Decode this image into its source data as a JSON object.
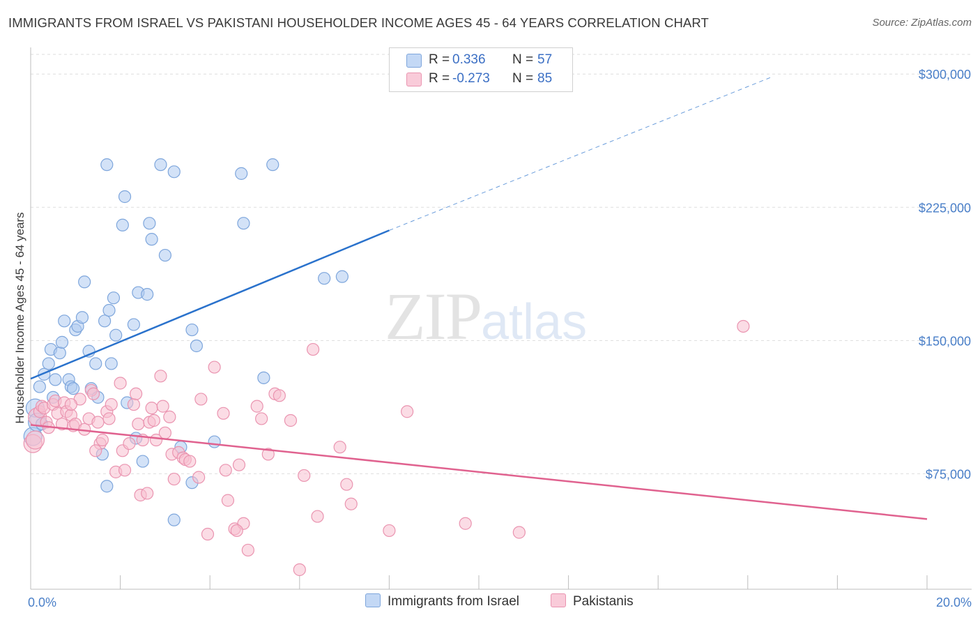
{
  "header": {
    "title": "IMMIGRANTS FROM ISRAEL VS PAKISTANI HOUSEHOLDER INCOME AGES 45 - 64 YEARS CORRELATION CHART",
    "source": "Source: ZipAtlas.com"
  },
  "watermark": {
    "zip": "ZIP",
    "atlas": "atlas"
  },
  "legend": {
    "r_label": "R =",
    "n_label": "N =",
    "israel": {
      "r": "0.336",
      "n": "57"
    },
    "pakistani": {
      "r": "-0.273",
      "n": "85"
    }
  },
  "bottom_legend": {
    "israel": "Immigrants from Israel",
    "pakistani": "Pakistanis"
  },
  "colors": {
    "israel_fill": "#aecbf0",
    "israel_stroke": "#7ea6dc",
    "israel_line": "#2a72cc",
    "pakistani_fill": "#f7bfd0",
    "pakistani_stroke": "#ea94b0",
    "pakistani_line": "#e0628f",
    "tick_label": "#4a7fc8",
    "grid": "#dddddd"
  },
  "chart_data": {
    "type": "scatter",
    "title": "IMMIGRANTS FROM ISRAEL VS PAKISTANI HOUSEHOLDER INCOME AGES 45 - 64 YEARS CORRELATION CHART",
    "xlabel": "",
    "ylabel": "Householder Income Ages 45 - 64 years",
    "xlim": [
      0,
      20
    ],
    "ylim": [
      10000,
      315000
    ],
    "x_unit": "%",
    "x_tick_labels": [
      "0.0%",
      "20.0%"
    ],
    "y_ticks": [
      75000,
      150000,
      225000,
      300000
    ],
    "y_tick_labels": [
      "$75,000",
      "$150,000",
      "$225,000",
      "$300,000"
    ],
    "grid": true,
    "legend_position": "top-center",
    "series": [
      {
        "name": "Immigrants from Israel",
        "color": "#aecbf0",
        "trend": {
          "x": [
            0,
            8.0
          ],
          "y": [
            128500,
            212000
          ],
          "dashed_to": [
            16.5,
            298000
          ]
        },
        "points": [
          [
            0.05,
            96000
          ],
          [
            0.1,
            112000
          ],
          [
            0.15,
            104000
          ],
          [
            0.2,
            124000
          ],
          [
            0.25,
            103000
          ],
          [
            0.3,
            131000
          ],
          [
            0.4,
            137000
          ],
          [
            0.45,
            145000
          ],
          [
            0.5,
            118000
          ],
          [
            0.55,
            128000
          ],
          [
            0.65,
            143000
          ],
          [
            0.7,
            149000
          ],
          [
            0.75,
            161000
          ],
          [
            0.85,
            128000
          ],
          [
            0.9,
            124000
          ],
          [
            0.95,
            123000
          ],
          [
            1.0,
            156000
          ],
          [
            1.05,
            158000
          ],
          [
            1.15,
            163000
          ],
          [
            1.2,
            183000
          ],
          [
            1.3,
            144000
          ],
          [
            1.35,
            123000
          ],
          [
            1.45,
            137000
          ],
          [
            1.5,
            118000
          ],
          [
            1.6,
            86000
          ],
          [
            1.65,
            161000
          ],
          [
            1.7,
            68000
          ],
          [
            1.75,
            167000
          ],
          [
            1.8,
            137000
          ],
          [
            1.85,
            174000
          ],
          [
            1.9,
            153000
          ],
          [
            2.05,
            215000
          ],
          [
            2.1,
            231000
          ],
          [
            2.15,
            115000
          ],
          [
            2.3,
            159000
          ],
          [
            2.35,
            95000
          ],
          [
            2.4,
            177000
          ],
          [
            2.5,
            82000
          ],
          [
            2.6,
            176000
          ],
          [
            2.65,
            216000
          ],
          [
            2.7,
            207000
          ],
          [
            3.0,
            198000
          ],
          [
            3.2,
            49000
          ],
          [
            3.35,
            90000
          ],
          [
            3.6,
            156000
          ],
          [
            3.7,
            147000
          ],
          [
            4.1,
            93000
          ],
          [
            4.7,
            244000
          ],
          [
            4.75,
            216000
          ],
          [
            5.2,
            129000
          ],
          [
            6.55,
            185000
          ],
          [
            6.95,
            186000
          ],
          [
            1.7,
            249000
          ],
          [
            2.9,
            249000
          ],
          [
            3.2,
            245000
          ],
          [
            5.4,
            249000
          ],
          [
            3.6,
            70000
          ]
        ]
      },
      {
        "name": "Pakistanis",
        "color": "#f7bfd0",
        "trend": {
          "x": [
            0,
            20
          ],
          "y": [
            102500,
            49500
          ]
        },
        "points": [
          [
            0.05,
            92000
          ],
          [
            0.1,
            94000
          ],
          [
            0.15,
            107000
          ],
          [
            0.2,
            110000
          ],
          [
            0.25,
            113000
          ],
          [
            0.3,
            112000
          ],
          [
            0.35,
            104000
          ],
          [
            0.4,
            101000
          ],
          [
            0.5,
            114000
          ],
          [
            0.55,
            116000
          ],
          [
            0.6,
            109000
          ],
          [
            0.7,
            103000
          ],
          [
            0.75,
            115000
          ],
          [
            0.8,
            110000
          ],
          [
            0.9,
            108000
          ],
          [
            0.95,
            102000
          ],
          [
            1.0,
            103000
          ],
          [
            1.1,
            117000
          ],
          [
            1.2,
            100000
          ],
          [
            1.3,
            106000
          ],
          [
            1.35,
            122000
          ],
          [
            1.4,
            120000
          ],
          [
            1.5,
            104000
          ],
          [
            1.55,
            92000
          ],
          [
            1.6,
            94000
          ],
          [
            1.7,
            110000
          ],
          [
            1.75,
            106000
          ],
          [
            1.8,
            114000
          ],
          [
            1.9,
            76000
          ],
          [
            2.0,
            126000
          ],
          [
            2.05,
            88000
          ],
          [
            2.1,
            77000
          ],
          [
            2.2,
            92000
          ],
          [
            2.3,
            114000
          ],
          [
            2.35,
            120000
          ],
          [
            2.4,
            103000
          ],
          [
            2.45,
            63000
          ],
          [
            2.5,
            94000
          ],
          [
            2.6,
            64000
          ],
          [
            2.65,
            104000
          ],
          [
            2.7,
            112000
          ],
          [
            2.75,
            105000
          ],
          [
            2.8,
            94000
          ],
          [
            2.9,
            130000
          ],
          [
            2.95,
            113000
          ],
          [
            3.0,
            98000
          ],
          [
            3.1,
            107000
          ],
          [
            3.15,
            86000
          ],
          [
            3.2,
            72000
          ],
          [
            3.3,
            87000
          ],
          [
            3.4,
            84000
          ],
          [
            3.45,
            83000
          ],
          [
            3.55,
            82000
          ],
          [
            3.75,
            73000
          ],
          [
            3.8,
            117000
          ],
          [
            3.95,
            41000
          ],
          [
            4.1,
            135000
          ],
          [
            4.3,
            109000
          ],
          [
            4.35,
            77000
          ],
          [
            4.4,
            60000
          ],
          [
            4.55,
            44000
          ],
          [
            4.65,
            80000
          ],
          [
            4.75,
            47000
          ],
          [
            4.85,
            32000
          ],
          [
            5.05,
            113000
          ],
          [
            5.15,
            106000
          ],
          [
            5.3,
            86000
          ],
          [
            5.45,
            120000
          ],
          [
            5.55,
            119000
          ],
          [
            5.8,
            105000
          ],
          [
            6.0,
            21000
          ],
          [
            6.1,
            74000
          ],
          [
            6.3,
            145000
          ],
          [
            6.4,
            51000
          ],
          [
            6.9,
            90000
          ],
          [
            7.05,
            69000
          ],
          [
            7.15,
            58000
          ],
          [
            8.0,
            43000
          ],
          [
            8.4,
            110000
          ],
          [
            9.7,
            47000
          ],
          [
            10.9,
            42000
          ],
          [
            15.9,
            158000
          ],
          [
            0.9,
            114000
          ],
          [
            1.45,
            88000
          ],
          [
            4.6,
            43000
          ]
        ]
      }
    ]
  }
}
